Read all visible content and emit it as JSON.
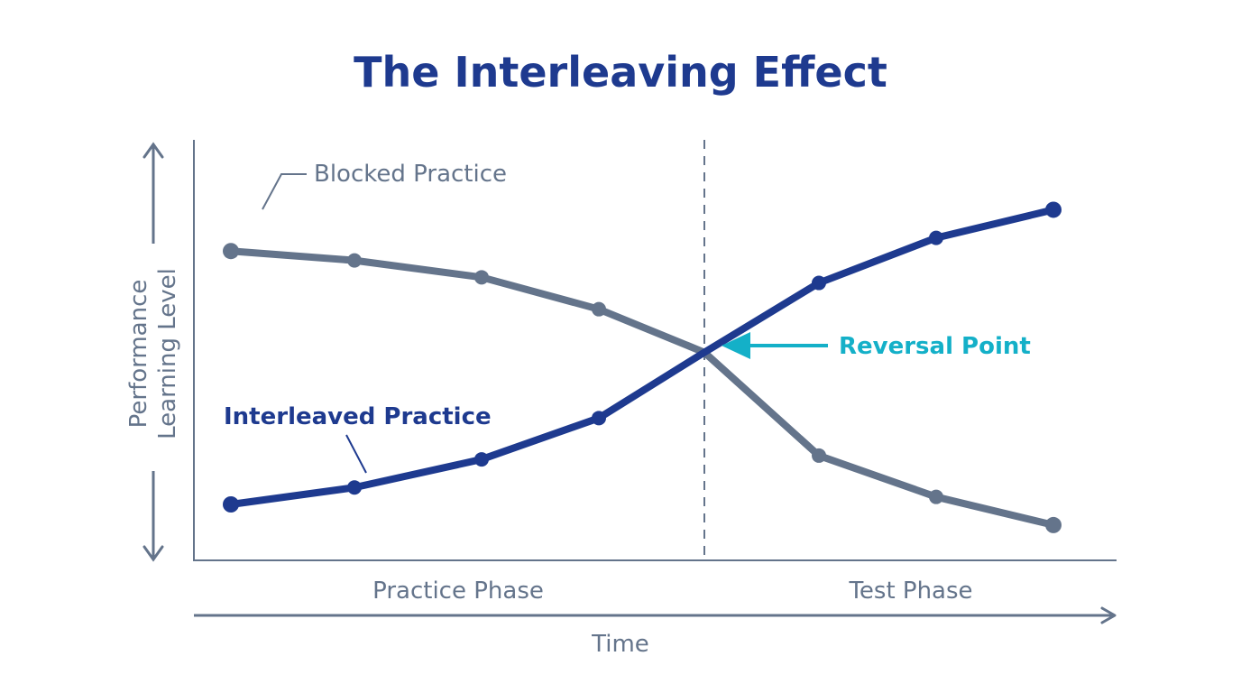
{
  "chart_data": {
    "type": "line",
    "title": "The Interleaving Effect",
    "xlabel": "Time",
    "ylabel": [
      "Performance",
      "Learning Level"
    ],
    "x_phases": [
      "Practice Phase",
      "Test Phase"
    ],
    "x": [
      1,
      2,
      3,
      4,
      5,
      6,
      7,
      8
    ],
    "ylim": [
      0,
      10
    ],
    "grid": false,
    "legend_position": "inline annotations",
    "series": [
      {
        "name": "Blocked Practice",
        "color": "#64748b",
        "values": [
          8.0,
          7.75,
          7.3,
          6.45,
          5.3,
          2.55,
          1.45,
          0.7
        ]
      },
      {
        "name": "Interleaved Practice",
        "color": "#1e3a8f",
        "values": [
          1.25,
          1.7,
          2.45,
          3.55,
          5.3,
          7.15,
          8.35,
          9.1
        ]
      }
    ],
    "annotations": [
      {
        "text": "Reversal Point",
        "color": "#14b0c8",
        "at_x": 5,
        "at_y": 5.3
      }
    ],
    "divider": {
      "style": "dashed",
      "between": "Practice Phase and Test Phase",
      "x": 5
    }
  },
  "colors": {
    "title": "#1e3a8f",
    "axis": "#64748b",
    "blocked": "#64748b",
    "interleaved": "#1e3a8f",
    "accent": "#14b0c8"
  }
}
